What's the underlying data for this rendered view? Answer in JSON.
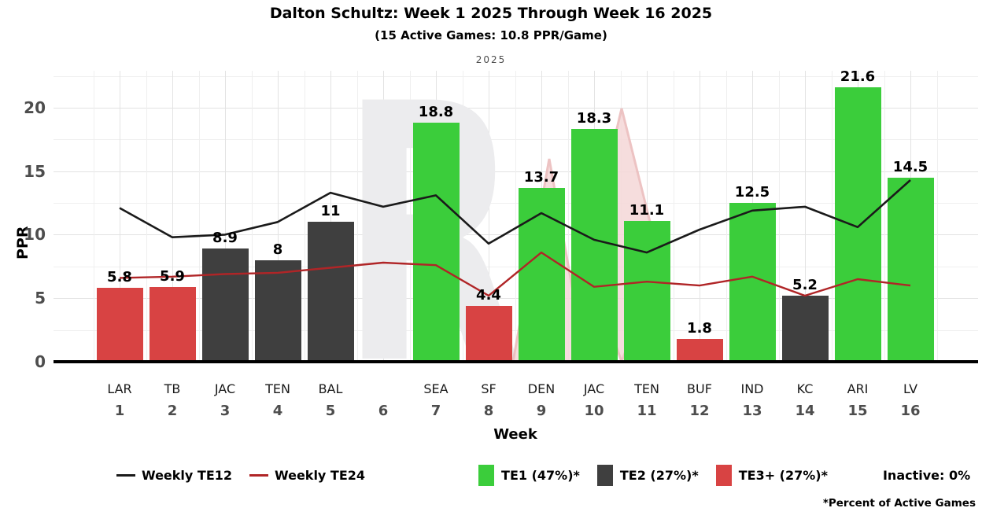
{
  "header": {
    "title": "Dalton Schultz: Week 1 2025 Through Week 16 2025",
    "subtitle": "(15 Active Games: 10.8 PPR/Game)",
    "facet_label": "2025"
  },
  "axes": {
    "y_label": "PPR",
    "x_label": "Week",
    "y_ticks": [
      0,
      5,
      10,
      15,
      20
    ]
  },
  "chart_data": {
    "type": "bar",
    "title": "Dalton Schultz: Week 1 2025 Through Week 16 2025",
    "subtitle": "(15 Active Games: 10.8 PPR/Game)",
    "xlabel": "Week",
    "ylabel": "PPR",
    "ylim": [
      0,
      22.9
    ],
    "grid": "major+minor",
    "legend_position": "bottom",
    "weeks": [
      1,
      2,
      3,
      4,
      5,
      6,
      7,
      8,
      9,
      10,
      11,
      12,
      13,
      14,
      15,
      16
    ],
    "opponents": [
      "LAR",
      "TB",
      "JAC",
      "TEN",
      "BAL",
      "",
      "SEA",
      "SF",
      "DEN",
      "JAC",
      "TEN",
      "BUF",
      "IND",
      "KC",
      "ARI",
      "LV"
    ],
    "bars": {
      "values": [
        5.8,
        5.9,
        8.9,
        8,
        11,
        null,
        18.8,
        4.4,
        13.7,
        18.3,
        11.1,
        1.8,
        12.5,
        5.2,
        21.6,
        14.5
      ],
      "labels": [
        "5.8",
        "5.9",
        "8.9",
        "8",
        "11",
        "",
        "18.8",
        "4.4",
        "13.7",
        "18.3",
        "11.1",
        "1.8",
        "12.5",
        "5.2",
        "21.6",
        "14.5"
      ],
      "tiers": [
        "te3",
        "te3",
        "te2",
        "te2",
        "te2",
        null,
        "te1",
        "te3",
        "te1",
        "te1",
        "te1",
        "te3",
        "te1",
        "te2",
        "te1",
        "te1"
      ]
    },
    "series": [
      {
        "name": "Weekly TE12",
        "key": "te12",
        "values": [
          12.1,
          9.8,
          10.0,
          11.0,
          13.3,
          12.2,
          13.1,
          9.3,
          11.7,
          9.6,
          8.6,
          10.4,
          11.9,
          12.2,
          10.6,
          14.3
        ]
      },
      {
        "name": "Weekly TE24",
        "key": "te24",
        "values": [
          6.6,
          6.7,
          6.9,
          7.0,
          7.4,
          7.8,
          7.6,
          5.2,
          8.6,
          5.9,
          6.3,
          6.0,
          6.7,
          5.2,
          6.5,
          6.0
        ]
      }
    ]
  },
  "colors": {
    "te1": "#3bcd3b",
    "te2": "#3f3f3f",
    "te3": "#d84343",
    "te12": "#1a1a1a",
    "te24": "#b02527",
    "axis_text": "#4d4d4d",
    "grid_major": "#e3e3e3",
    "grid_minor": "#efefef",
    "watermark_gray": "#ececee",
    "watermark_pink": "#f5d8d8",
    "watermark_pink_edge": "#eab9b9"
  },
  "legend": {
    "items": [
      {
        "key": "te12",
        "type": "line",
        "label": "Weekly TE12"
      },
      {
        "key": "te24",
        "type": "line",
        "label": "Weekly TE24"
      },
      {
        "key": "te1",
        "type": "box",
        "label": "TE1 (47%)*"
      },
      {
        "key": "te2",
        "type": "box",
        "label": "TE2 (27%)*"
      },
      {
        "key": "te3",
        "type": "box",
        "label": "TE3+ (27%)*"
      }
    ],
    "inactive_label": "Inactive: 0%"
  },
  "footnote": "*Percent of Active Games",
  "watermark": {
    "letter": "R"
  }
}
